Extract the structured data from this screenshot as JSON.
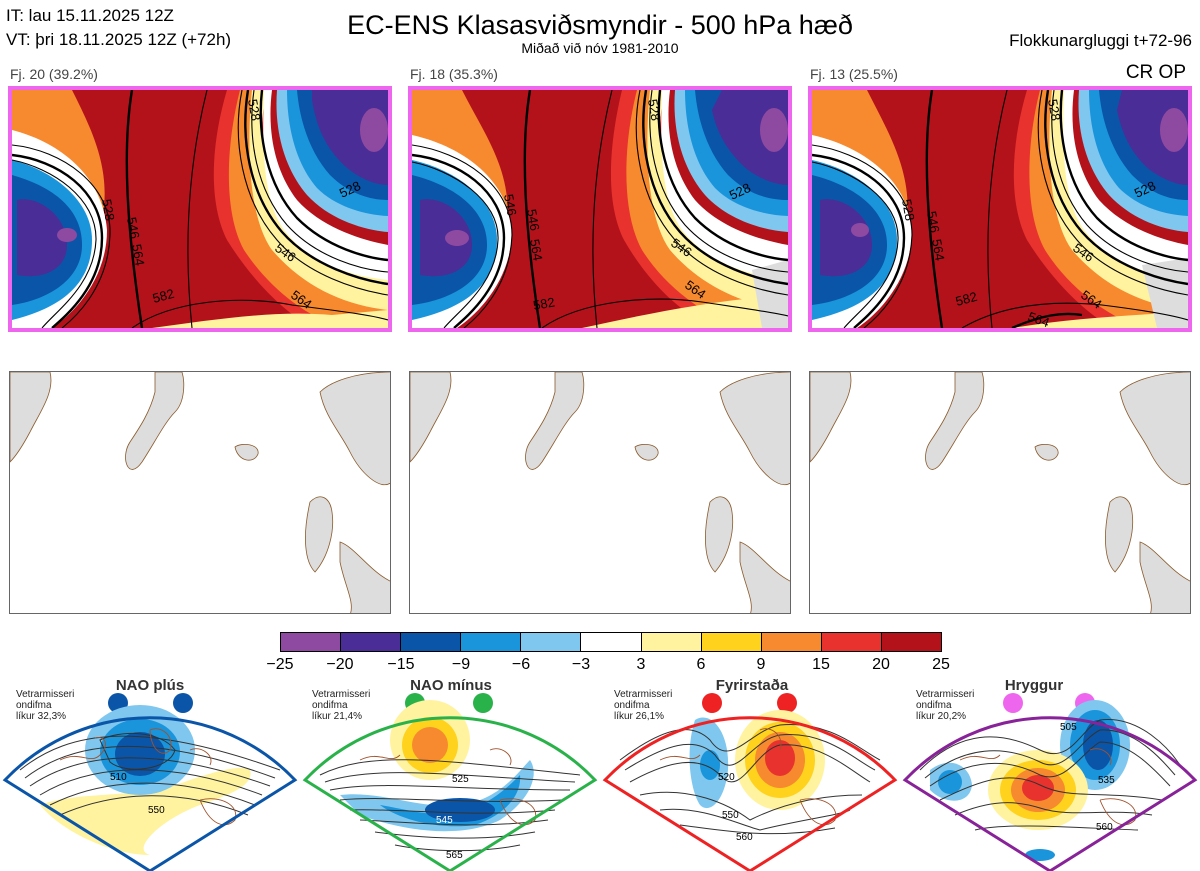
{
  "header": {
    "it_line": "IT: lau 15.11.2025 12Z",
    "vt_line": "VT: þri 18.11.2025 12Z  (+72h)",
    "title": "EC-ENS Klasasviðsmyndir - 500 hPa hæð",
    "subtitle": "Miðað við nóv 1981-2010",
    "window": "Flokkunargluggi t+72-96",
    "crop": "CR OP"
  },
  "clusters": [
    {
      "label": "Fj. 20 (39.2%)",
      "contours": [
        "528",
        "546",
        "528",
        "564",
        "546",
        "582",
        "564",
        "528"
      ]
    },
    {
      "label": "Fj. 18 (35.3%)",
      "contours": [
        "546",
        "546",
        "528",
        "564",
        "546",
        "582",
        "564",
        "528"
      ]
    },
    {
      "label": "Fj. 13 (25.5%)",
      "contours": [
        "528",
        "546",
        "528",
        "564",
        "546",
        "582",
        "564",
        "564",
        "528"
      ]
    }
  ],
  "colorbar": {
    "ticks": [
      "−25",
      "−20",
      "−15",
      "−9",
      "−6",
      "−3",
      "3",
      "6",
      "9",
      "15",
      "20",
      "25"
    ],
    "colors": [
      "#8e4aa0",
      "#4a2d96",
      "#0a55a8",
      "#1a95dc",
      "#7fc7ee",
      "#ffffff",
      "#fff3a0",
      "#ffd21e",
      "#f7892f",
      "#e8322e",
      "#b3121b"
    ]
  },
  "regimes": [
    {
      "name": "NAO plús",
      "info": [
        "Vetrarmisseri",
        "ondifma",
        "líkur 32,3%"
      ],
      "color": "#0a55a8",
      "labels": [
        "510",
        "550"
      ]
    },
    {
      "name": "NAO mínus",
      "info": [
        "Vetrarmisseri",
        "ondifma",
        "líkur 21,4%"
      ],
      "color": "#2ab24a",
      "labels": [
        "525",
        "545",
        "565"
      ]
    },
    {
      "name": "Fyrirstaða",
      "info": [
        "Vetrarmisseri",
        "ondifma",
        "líkur 26,1%"
      ],
      "color": "#ee2222",
      "labels": [
        "520",
        "550",
        "560"
      ]
    },
    {
      "name": "Hryggur",
      "info": [
        "Vetrarmisseri",
        "ondifma",
        "líkur 20,2%"
      ],
      "color": "#ee66ee",
      "labels": [
        "505",
        "535",
        "560"
      ]
    }
  ]
}
